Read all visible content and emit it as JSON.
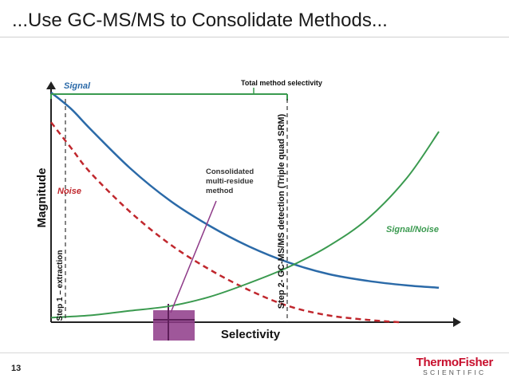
{
  "slide": {
    "title": "...Use GC-MS/MS to Consolidate Methods...",
    "page_number": "13",
    "logo_main": "ThermoFisher",
    "logo_sub": "SCIENTIFIC"
  },
  "colors": {
    "signal": "#2b6aa8",
    "noise": "#c0272d",
    "signal_noise": "#3a9a4f",
    "total_selectivity": "#3a9a4f",
    "consolidated_box": "#8e3a88",
    "axis": "#222222",
    "marker_line": "#333333"
  },
  "chart_data": {
    "type": "line",
    "title": "",
    "xlabel": "Selectivity",
    "ylabel": "Magnitude",
    "xlim": [
      0,
      100
    ],
    "ylim": [
      0,
      100
    ],
    "grid": false,
    "series": [
      {
        "name": "Signal",
        "x": [
          0,
          5,
          10,
          20,
          30,
          40,
          50,
          60,
          70,
          80,
          90,
          98
        ],
        "y": [
          100,
          93,
          84,
          67,
          53,
          42,
          33,
          26,
          21,
          18,
          16,
          15
        ]
      },
      {
        "name": "Noise",
        "x": [
          0,
          5,
          10,
          20,
          30,
          40,
          50,
          60,
          70,
          80,
          88
        ],
        "y": [
          87,
          76,
          65,
          48,
          34,
          23,
          14,
          7,
          3,
          1,
          0
        ]
      },
      {
        "name": "Signal/Noise",
        "x": [
          0,
          10,
          20,
          30,
          40,
          50,
          60,
          70,
          80,
          90,
          98
        ],
        "y": [
          2,
          3,
          5,
          7,
          11,
          17,
          24,
          33,
          45,
          63,
          83
        ]
      }
    ],
    "annotations": {
      "total_method_selectivity": {
        "label": "Total method selectivity",
        "x_start": 0,
        "x_end": 52,
        "y": 100
      },
      "step1": {
        "label": "Step 1 – extraction",
        "x": 3
      },
      "step2": {
        "label": "Step 2- GC-MS/MS detection (Triple quad SRM)",
        "x": 52
      },
      "consolidated": {
        "label_lines": [
          "Consolidated",
          "multi-residue",
          "method"
        ],
        "x": 26
      }
    }
  }
}
